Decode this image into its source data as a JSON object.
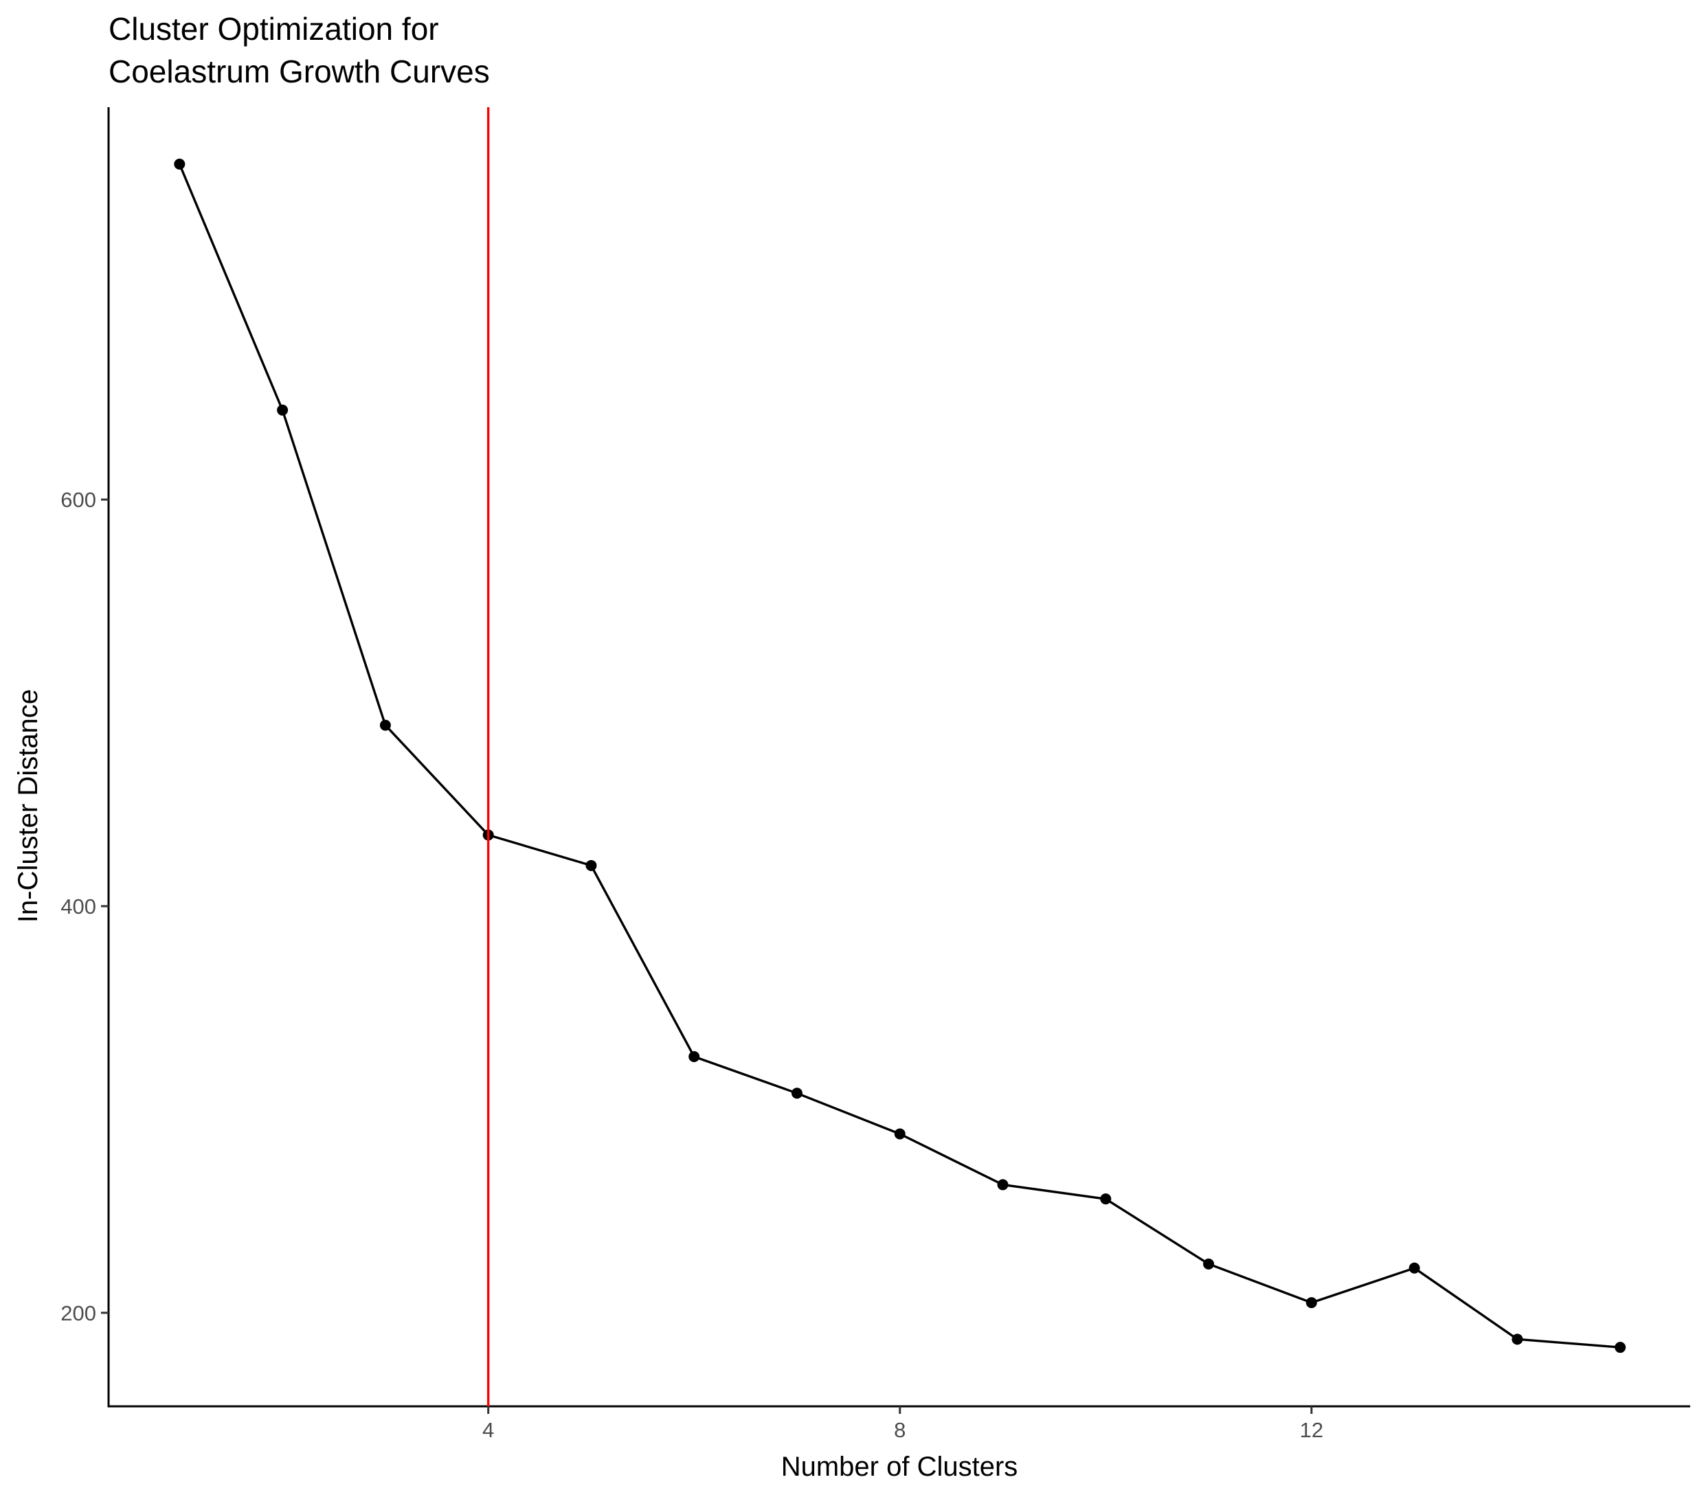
{
  "chart_data": {
    "type": "line",
    "title_lines": [
      "Cluster Optimization for",
      "Coelastrum Growth Curves"
    ],
    "xlabel": "Number of Clusters",
    "ylabel": "In-Cluster Distance",
    "x": [
      1,
      2,
      3,
      4,
      5,
      6,
      7,
      8,
      9,
      10,
      11,
      12,
      13,
      14,
      15
    ],
    "series": [
      {
        "values": [
          765,
          644,
          489,
          435,
          420,
          326,
          308,
          288,
          263,
          256,
          224,
          205,
          222,
          187,
          183
        ],
        "color": "#000000"
      }
    ],
    "xlim": [
      0.31,
      15.68
    ],
    "ylim": [
      154,
      793
    ],
    "x_ticks": [
      4,
      8,
      12
    ],
    "x_tick_labels": [
      "4",
      "8",
      "12"
    ],
    "y_ticks": [
      200,
      400,
      600
    ],
    "y_tick_labels": [
      "200",
      "400",
      "600"
    ],
    "reference_line": {
      "orientation": "vertical",
      "x": 4,
      "color": "#ff0000"
    },
    "grid": false,
    "legend": "none"
  }
}
